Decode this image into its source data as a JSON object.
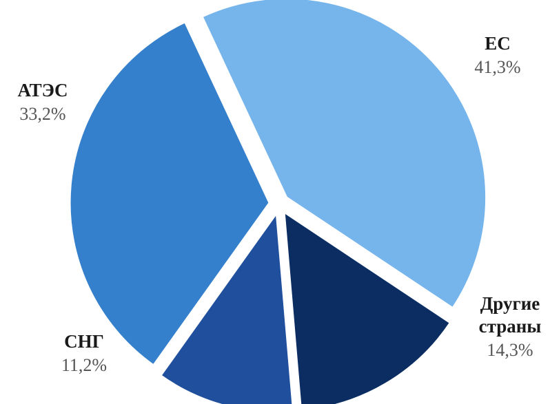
{
  "chart_data": {
    "type": "pie",
    "title": "",
    "exploded": true,
    "slices": [
      {
        "label": "ЕС",
        "label_lines": [
          "ЕС"
        ],
        "value": 41.3,
        "value_text": "41,3%",
        "color": "#76b5ec"
      },
      {
        "label": "Другие страны",
        "label_lines": [
          "Другие",
          "страны"
        ],
        "value": 14.3,
        "value_text": "14,3%",
        "color": "#0b2d62"
      },
      {
        "label": "СНГ",
        "label_lines": [
          "СНГ"
        ],
        "value": 11.2,
        "value_text": "11,2%",
        "color": "#1f4f9d"
      },
      {
        "label": "АТЭС",
        "label_lines": [
          "АТЭС"
        ],
        "value": 33.2,
        "value_text": "33,2%",
        "color": "#3580cc"
      }
    ]
  }
}
